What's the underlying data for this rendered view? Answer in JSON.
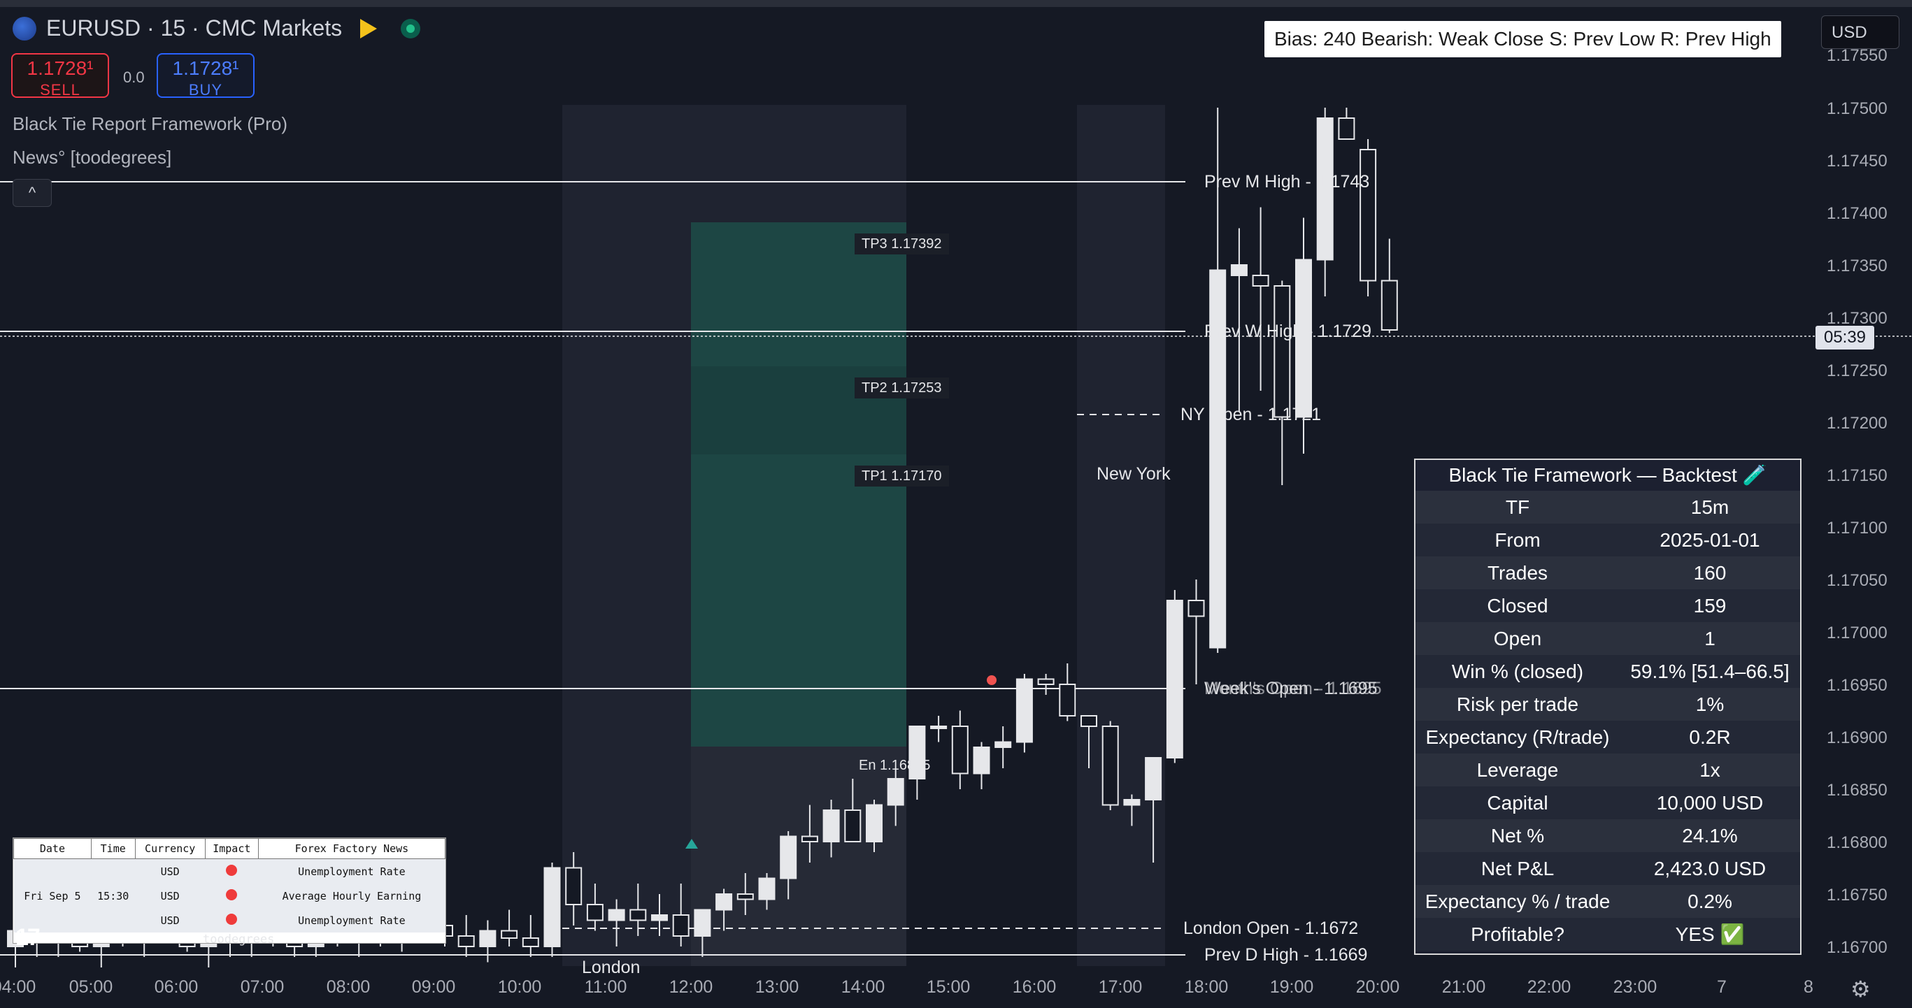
{
  "header": {
    "symbol_title": "EURUSD · 15 · CMC Markets",
    "sell_price": "1.1728¹",
    "sell_label": "SELL",
    "spread": "0.0",
    "buy_price": "1.1728¹",
    "buy_label": "BUY",
    "indicator_1": "Black Tie Report Framework (Pro)",
    "indicator_2": "News° [toodegrees]",
    "collapse_icon": "^",
    "currency": "USD"
  },
  "bias_label": "Bias: 240  Bearish: Weak Close  S: Prev Low  R: Prev High",
  "price_axis": [
    "1.17550",
    "1.17500",
    "1.17450",
    "1.17400",
    "1.17350",
    "1.17300",
    "1.17250",
    "1.17200",
    "1.17150",
    "1.17100",
    "1.17050",
    "1.17000",
    "1.16950",
    "1.16900",
    "1.16850",
    "1.16800",
    "1.16750",
    "1.16700"
  ],
  "countdown": "05:39",
  "time_axis": [
    "04:00",
    "05:00",
    "06:00",
    "07:00",
    "08:00",
    "09:00",
    "10:00",
    "11:00",
    "12:00",
    "13:00",
    "14:00",
    "15:00",
    "16:00",
    "17:00",
    "18:00",
    "19:00",
    "20:00",
    "21:00",
    "22:00",
    "23:00",
    "7",
    "8"
  ],
  "levels": {
    "prev_m_high": "Prev M High - 1.1743",
    "prev_w_high": "Prev W High - 1.1729",
    "ny_open": "NY Open - 1.1721",
    "new_york": "New York",
    "week_open": "Week's Open  - 1.1695",
    "month_open": "Month's Open - 1.1695",
    "london_open": "London Open - 1.1672",
    "prev_d_high": "Prev D High - 1.1669",
    "london": "London"
  },
  "targets": {
    "tp3": "TP3   1.17392",
    "tp2": "TP2   1.17253",
    "tp1": "TP1   1.17170",
    "entry": "En    1.16895"
  },
  "colors": {
    "bg": "#151924",
    "tp_zone": "#1e4a48",
    "sl_zone": "#262a36",
    "up": "#e6e7ea",
    "sell": "#f23645",
    "buy": "#2962ff"
  },
  "backtest": {
    "title": "Black Tie Framework — Backtest 🧪",
    "rows": [
      {
        "k": "TF",
        "v": "15m"
      },
      {
        "k": "From",
        "v": "2025-01-01"
      },
      {
        "k": "Trades",
        "v": "160"
      },
      {
        "k": "Closed",
        "v": "159"
      },
      {
        "k": "Open",
        "v": "1"
      },
      {
        "k": "Win % (closed)",
        "v": "59.1% [51.4–66.5]"
      },
      {
        "k": "Risk per trade",
        "v": "1%"
      },
      {
        "k": "Expectancy (R/trade)",
        "v": "0.2R"
      },
      {
        "k": "Leverage",
        "v": "1x"
      },
      {
        "k": "Capital",
        "v": "10,000 USD"
      },
      {
        "k": "Net %",
        "v": "24.1%"
      },
      {
        "k": "Net P&L",
        "v": "2,423.0 USD"
      },
      {
        "k": "Expectancy % / trade",
        "v": "0.2%"
      },
      {
        "k": "Profitable?",
        "v": "YES ✅"
      }
    ]
  },
  "news_table": {
    "headers": [
      "Date",
      "Time",
      "Currency",
      "Impact",
      "Forex Factory News"
    ],
    "rows": [
      {
        "date": "",
        "time": "",
        "currency": "USD",
        "news": "Unemployment Rate"
      },
      {
        "date": "Fri Sep 5",
        "time": "15:30",
        "currency": "USD",
        "news": "Average Hourly Earning"
      },
      {
        "date": "",
        "time": "",
        "currency": "USD",
        "news": "Unemployment Rate"
      }
    ],
    "credit": "toodegrees"
  },
  "tv_logo": "17",
  "candles": [
    {
      "o": 1.167,
      "h": 1.16725,
      "l": 1.1668,
      "c": 1.16715
    },
    {
      "o": 1.16715,
      "h": 1.1674,
      "l": 1.1669,
      "c": 1.16705
    },
    {
      "o": 1.16705,
      "h": 1.16735,
      "l": 1.1669,
      "c": 1.16725
    },
    {
      "o": 1.16725,
      "h": 1.16745,
      "l": 1.16695,
      "c": 1.167
    },
    {
      "o": 1.167,
      "h": 1.1673,
      "l": 1.1668,
      "c": 1.1672
    },
    {
      "o": 1.1672,
      "h": 1.1674,
      "l": 1.167,
      "c": 1.1671
    },
    {
      "o": 1.1671,
      "h": 1.16735,
      "l": 1.1669,
      "c": 1.16725
    },
    {
      "o": 1.16725,
      "h": 1.16745,
      "l": 1.16705,
      "c": 1.16715
    },
    {
      "o": 1.16715,
      "h": 1.1674,
      "l": 1.16695,
      "c": 1.167
    },
    {
      "o": 1.167,
      "h": 1.16725,
      "l": 1.1668,
      "c": 1.16712
    },
    {
      "o": 1.16712,
      "h": 1.16735,
      "l": 1.1669,
      "c": 1.16705
    },
    {
      "o": 1.16705,
      "h": 1.1673,
      "l": 1.1669,
      "c": 1.1672
    },
    {
      "o": 1.1672,
      "h": 1.16745,
      "l": 1.167,
      "c": 1.1671
    },
    {
      "o": 1.1671,
      "h": 1.1673,
      "l": 1.1669,
      "c": 1.167
    },
    {
      "o": 1.167,
      "h": 1.16725,
      "l": 1.1669,
      "c": 1.16715
    },
    {
      "o": 1.16715,
      "h": 1.1674,
      "l": 1.167,
      "c": 1.16705
    },
    {
      "o": 1.16705,
      "h": 1.1673,
      "l": 1.1669,
      "c": 1.1672
    },
    {
      "o": 1.1672,
      "h": 1.16745,
      "l": 1.167,
      "c": 1.1671
    },
    {
      "o": 1.1671,
      "h": 1.1674,
      "l": 1.16695,
      "c": 1.1673
    },
    {
      "o": 1.1673,
      "h": 1.1676,
      "l": 1.1671,
      "c": 1.1672
    },
    {
      "o": 1.1672,
      "h": 1.16745,
      "l": 1.167,
      "c": 1.1671
    },
    {
      "o": 1.1671,
      "h": 1.1673,
      "l": 1.1669,
      "c": 1.167
    },
    {
      "o": 1.167,
      "h": 1.16725,
      "l": 1.16685,
      "c": 1.16715
    },
    {
      "o": 1.16715,
      "h": 1.16735,
      "l": 1.167,
      "c": 1.16708
    },
    {
      "o": 1.16708,
      "h": 1.1673,
      "l": 1.1669,
      "c": 1.167
    },
    {
      "o": 1.167,
      "h": 1.1678,
      "l": 1.1669,
      "c": 1.16775
    },
    {
      "o": 1.16775,
      "h": 1.1679,
      "l": 1.1672,
      "c": 1.1674
    },
    {
      "o": 1.1674,
      "h": 1.1676,
      "l": 1.16715,
      "c": 1.16725
    },
    {
      "o": 1.16725,
      "h": 1.16745,
      "l": 1.167,
      "c": 1.16735
    },
    {
      "o": 1.16735,
      "h": 1.1676,
      "l": 1.1671,
      "c": 1.16725
    },
    {
      "o": 1.16725,
      "h": 1.1675,
      "l": 1.1671,
      "c": 1.1673
    },
    {
      "o": 1.1673,
      "h": 1.1676,
      "l": 1.167,
      "c": 1.1671
    },
    {
      "o": 1.1671,
      "h": 1.16735,
      "l": 1.1669,
      "c": 1.16735
    },
    {
      "o": 1.16735,
      "h": 1.16755,
      "l": 1.16715,
      "c": 1.1675
    },
    {
      "o": 1.1675,
      "h": 1.1677,
      "l": 1.1673,
      "c": 1.16745
    },
    {
      "o": 1.16745,
      "h": 1.1677,
      "l": 1.16735,
      "c": 1.16765
    },
    {
      "o": 1.16765,
      "h": 1.1681,
      "l": 1.16745,
      "c": 1.16805
    },
    {
      "o": 1.16805,
      "h": 1.16835,
      "l": 1.1678,
      "c": 1.168
    },
    {
      "o": 1.168,
      "h": 1.1684,
      "l": 1.16785,
      "c": 1.1683
    },
    {
      "o": 1.1683,
      "h": 1.1686,
      "l": 1.168,
      "c": 1.168
    },
    {
      "o": 1.168,
      "h": 1.1684,
      "l": 1.1679,
      "c": 1.16835
    },
    {
      "o": 1.16835,
      "h": 1.1687,
      "l": 1.16815,
      "c": 1.1686
    },
    {
      "o": 1.1686,
      "h": 1.1691,
      "l": 1.1684,
      "c": 1.1691
    },
    {
      "o": 1.1691,
      "h": 1.1692,
      "l": 1.16895,
      "c": 1.1691
    },
    {
      "o": 1.1691,
      "h": 1.16925,
      "l": 1.1685,
      "c": 1.16865
    },
    {
      "o": 1.16865,
      "h": 1.16895,
      "l": 1.1685,
      "c": 1.1689
    },
    {
      "o": 1.1689,
      "h": 1.1691,
      "l": 1.1687,
      "c": 1.16895
    },
    {
      "o": 1.16895,
      "h": 1.1696,
      "l": 1.16885,
      "c": 1.16955
    },
    {
      "o": 1.16955,
      "h": 1.1696,
      "l": 1.1694,
      "c": 1.1695
    },
    {
      "o": 1.1695,
      "h": 1.1697,
      "l": 1.16915,
      "c": 1.1692
    },
    {
      "o": 1.1692,
      "h": 1.1692,
      "l": 1.1687,
      "c": 1.1691
    },
    {
      "o": 1.1691,
      "h": 1.16915,
      "l": 1.1683,
      "c": 1.16835
    },
    {
      "o": 1.16835,
      "h": 1.16845,
      "l": 1.16815,
      "c": 1.1684
    },
    {
      "o": 1.1684,
      "h": 1.1688,
      "l": 1.1678,
      "c": 1.1688
    },
    {
      "o": 1.1688,
      "h": 1.1704,
      "l": 1.16875,
      "c": 1.1703
    },
    {
      "o": 1.1703,
      "h": 1.1705,
      "l": 1.1695,
      "c": 1.17015
    },
    {
      "o": 1.16985,
      "h": 1.175,
      "l": 1.1698,
      "c": 1.17345
    },
    {
      "o": 1.1734,
      "h": 1.17385,
      "l": 1.1721,
      "c": 1.1735
    },
    {
      "o": 1.1734,
      "h": 1.17405,
      "l": 1.1723,
      "c": 1.1733
    },
    {
      "o": 1.1733,
      "h": 1.17335,
      "l": 1.1714,
      "c": 1.17205
    },
    {
      "o": 1.17205,
      "h": 1.17395,
      "l": 1.1717,
      "c": 1.17355
    },
    {
      "o": 1.17355,
      "h": 1.175,
      "l": 1.1732,
      "c": 1.1749
    },
    {
      "o": 1.1749,
      "h": 1.175,
      "l": 1.1747,
      "c": 1.1747
    },
    {
      "o": 1.1746,
      "h": 1.1747,
      "l": 1.1732,
      "c": 1.17335
    },
    {
      "o": 1.17335,
      "h": 1.17375,
      "l": 1.17285,
      "c": 1.17288
    }
  ]
}
